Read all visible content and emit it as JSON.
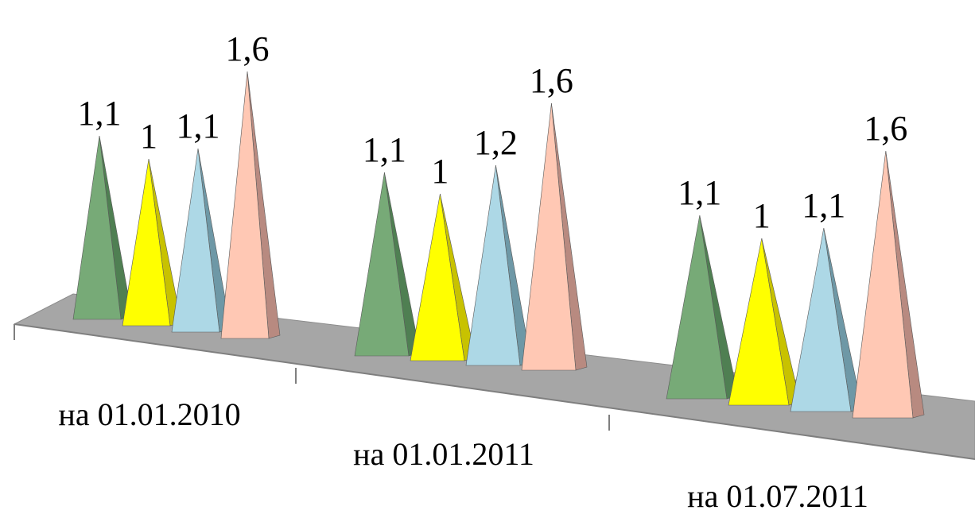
{
  "chart_data": {
    "type": "bar",
    "categories": [
      "на 01.01.2010",
      "на 01.01.2011",
      "на 01.07.2011"
    ],
    "series": [
      {
        "values": [
          1.1,
          1.1,
          1.1
        ],
        "color": "#77AA77",
        "shade": "#4F7F52"
      },
      {
        "values": [
          1,
          1,
          1
        ],
        "color": "#FFFF00",
        "shade": "#C8C200"
      },
      {
        "values": [
          1.1,
          1.2,
          1.1
        ],
        "color": "#ADD8E6",
        "shade": "#6E98A6"
      },
      {
        "values": [
          1.6,
          1.6,
          1.6
        ],
        "color": "#FFC8B4",
        "shade": "#B88A80"
      }
    ],
    "data_labels": [
      [
        "1,1",
        "1",
        "1,1",
        "1,6"
      ],
      [
        "1,1",
        "1",
        "1,2",
        "1,6"
      ],
      [
        "1,1",
        "1",
        "1,1",
        "1,6"
      ]
    ],
    "title": "",
    "xlabel": "",
    "ylabel": "",
    "ylim": [
      0,
      1.6
    ],
    "grid": false,
    "legend": "none",
    "floor_color": "#A6A6A6"
  }
}
